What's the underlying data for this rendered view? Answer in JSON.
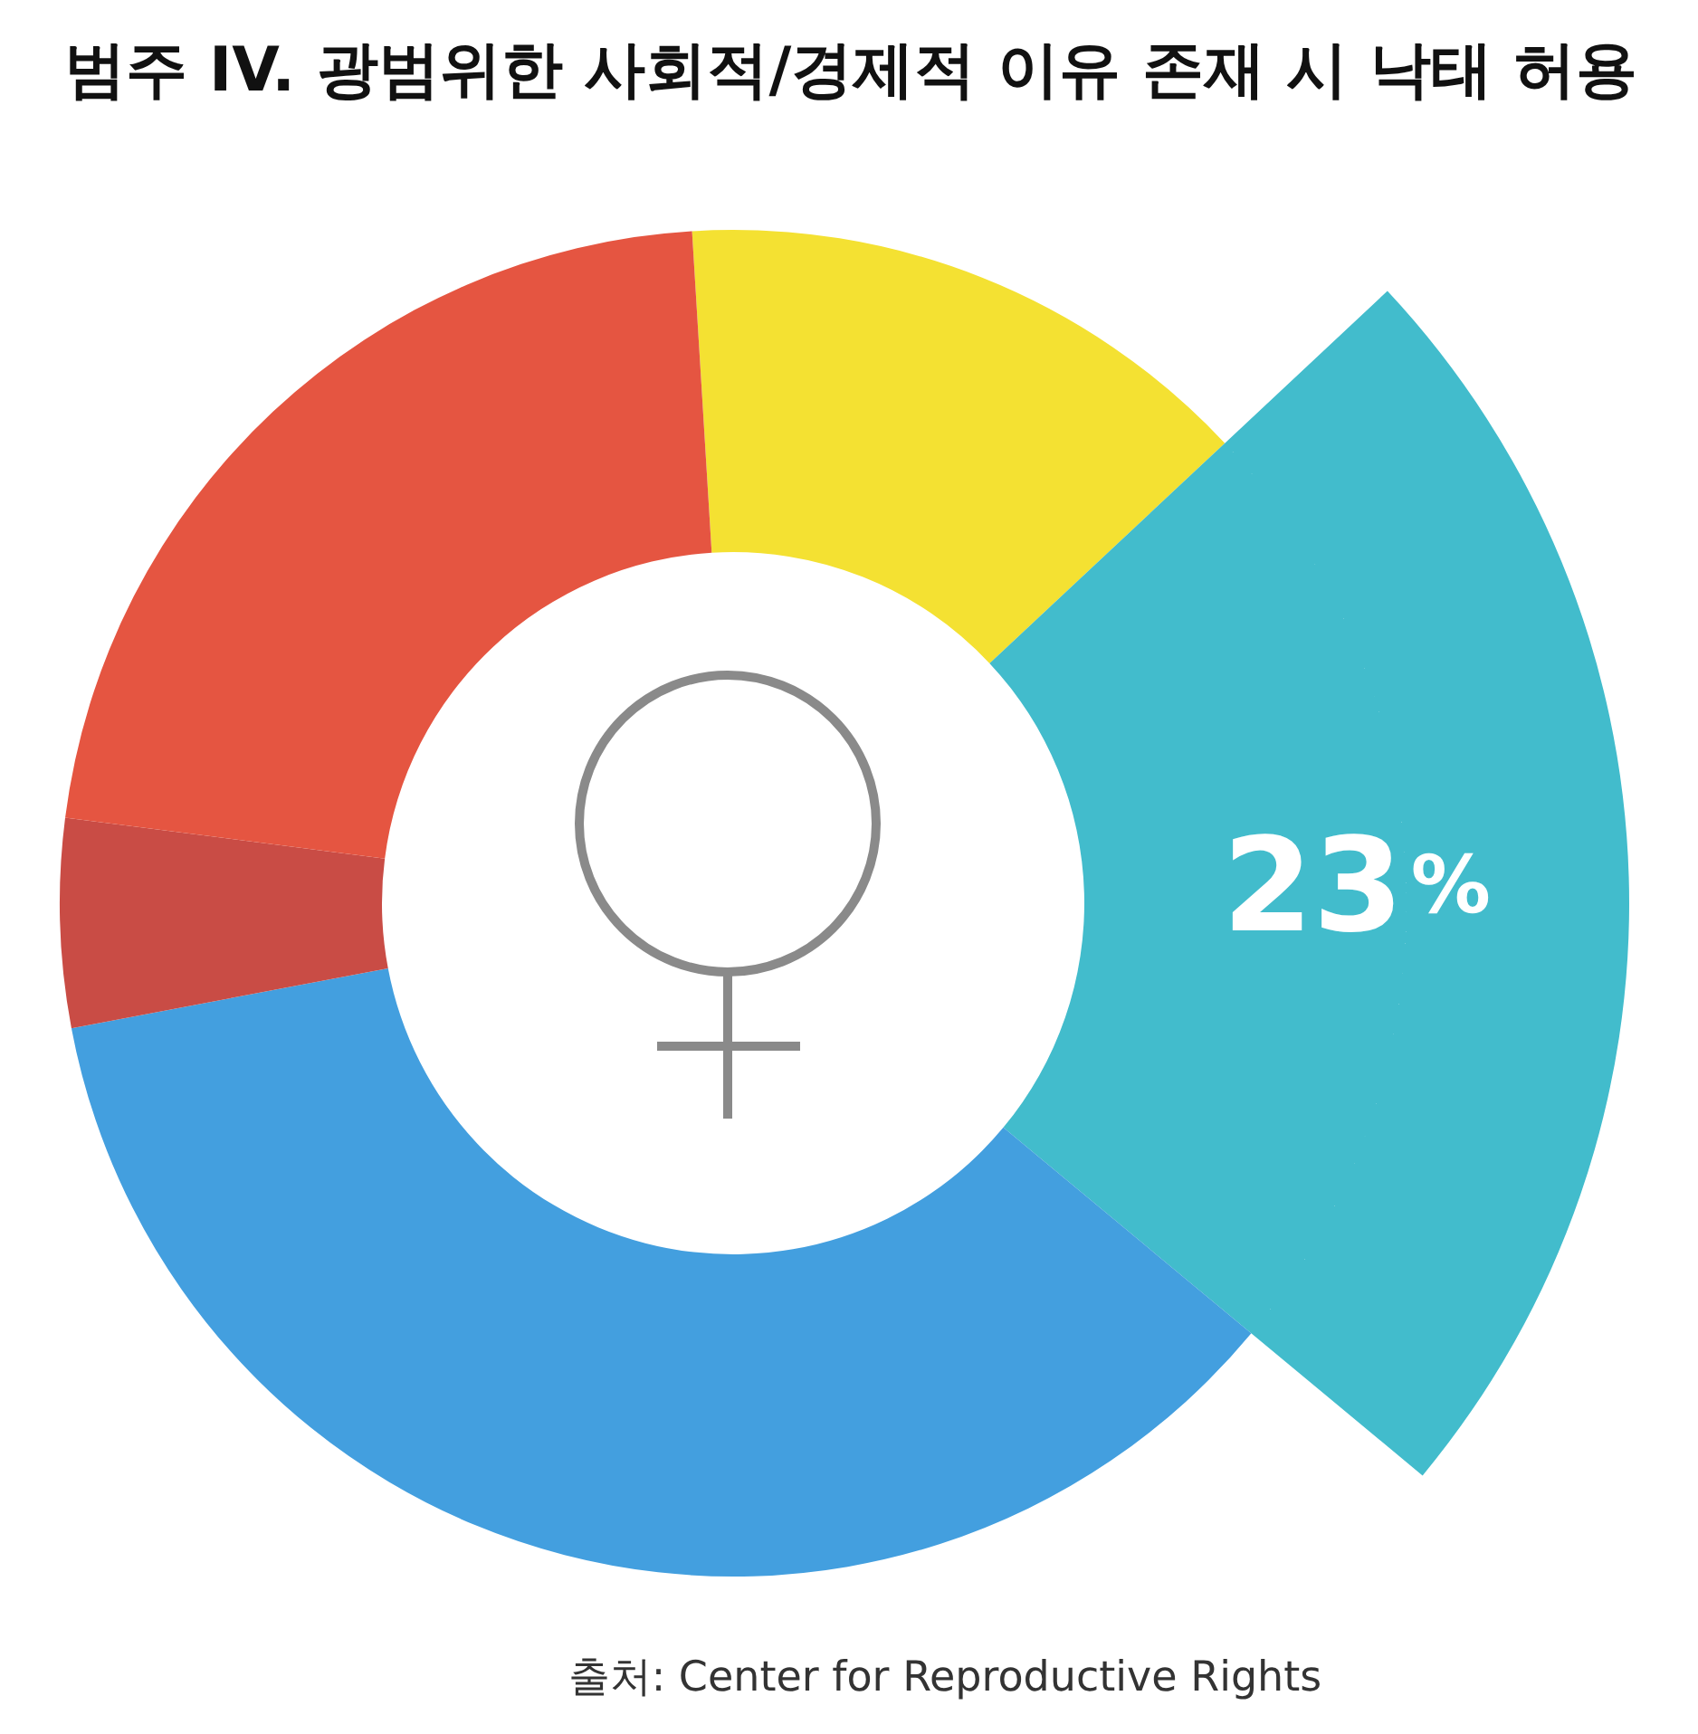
{
  "chart_data": {
    "type": "donut",
    "title": "범주 IV. 광범위한 사회적/경제적 이유 존재 시 낙태 허용",
    "categories": [
      null,
      null,
      null,
      null,
      null
    ],
    "values": [
      14,
      23,
      36,
      5,
      22
    ],
    "colors": [
      "#f4e132",
      "#42bccc",
      "#439fdf",
      "#c94c45",
      "#e55541"
    ],
    "value_labels": [
      null,
      "23%",
      null,
      null,
      null
    ],
    "annotations": [
      "출처: Center for Reproductive Rights"
    ]
  }
}
